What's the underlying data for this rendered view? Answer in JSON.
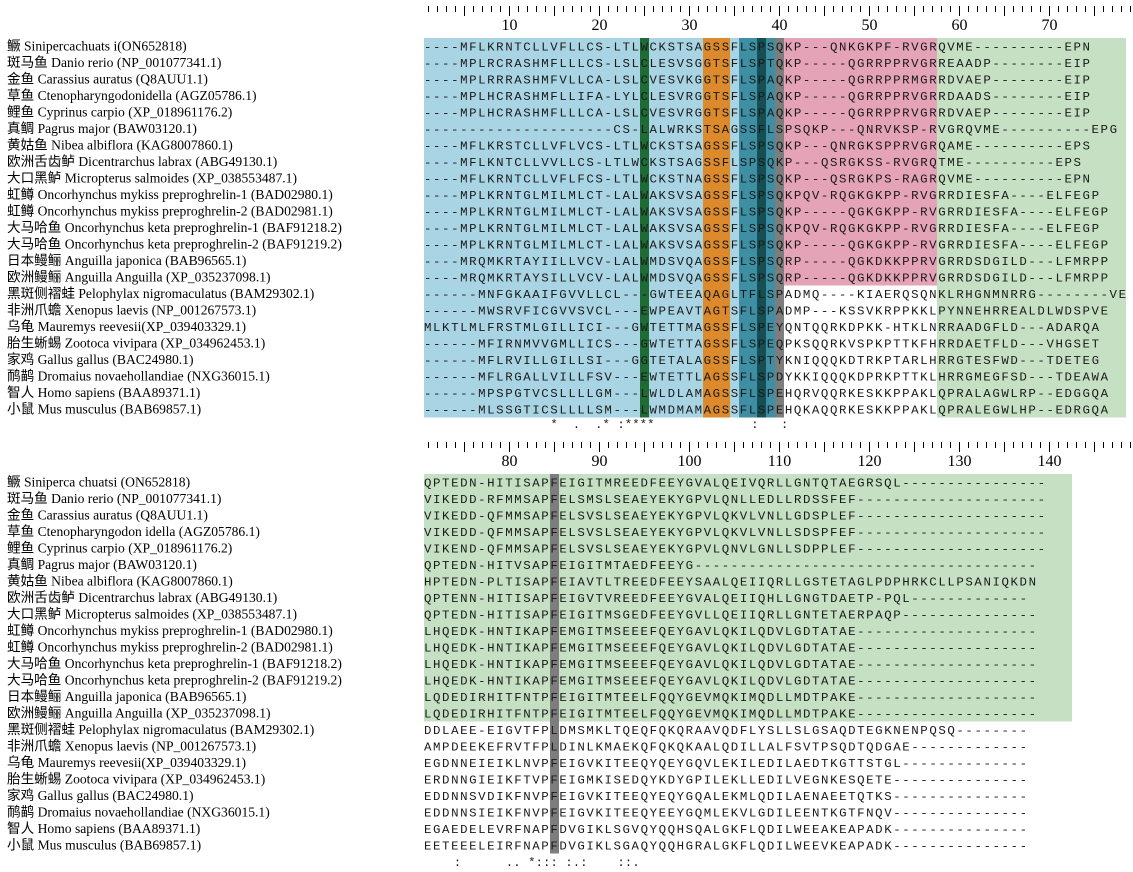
{
  "colors": {
    "blue": "#a9d4e4",
    "pink": "#e5a3b7",
    "green_bg": "#c6e0c4",
    "dark_green": "#1f6b35",
    "orange": "#dc8a2b",
    "teal": "#3e8fa3",
    "dark_teal": "#154f54",
    "gray": "#7d7d7d"
  },
  "blocks": [
    {
      "ruler_numbers": [
        "10",
        "20",
        "30",
        "40",
        "50",
        "60",
        "70"
      ],
      "rows": [
        {
          "name": "鳜 Sinipercachuats i(ON652818)",
          "seq": "----MFLKRNTCLLVFLLCS-LTLWCKSTSAGSSFLSPSQKP---QNKGKPF-RVGRQVME----------EPN"
        },
        {
          "name": "斑马鱼 Danio rerio (NP_001077341.1)",
          "seq": "----MPLRCRASHMFLLLCS-LSLCLESVSGGTSFLSPTQKP-----QGRRPPRVGRREAADP--------EIP"
        },
        {
          "name": "金鱼 Carassius auratus (Q8AUU1.1)",
          "seq": "----MPLRRRASHMFVLLCA-LSLCVESVKGGTSFLSPAQKP-----QGRRPPRMGRRDVAEP--------EIP"
        },
        {
          "name": "草鱼 Ctenopharyngodonidella (AGZ05786.1)",
          "seq": "----MPLHCRASHMFLLIFA-LYLCLESVRGGTSFLSPAQKP-----QGRRPPRVGRRDAADS--------EIP"
        },
        {
          "name": "鲤鱼 Cyprinus carpio (XP_018961176.2)",
          "seq": "----MPLHCRASHMFLLLCA-LSLCVESVRGGTSFLSPAQKP-----QGRRPPRVGRRDVAEP--------EIP"
        },
        {
          "name": "真鲷 Pagrus major (BAW03120.1)",
          "seq": "---------------------CS-LALWRKSTSAGSSFLSPSQKP---QNRVKSP-RVGRQVME----------EPG"
        },
        {
          "name": "黄姑鱼 Nibea albiflora (KAG8007860.1)",
          "seq": "----MFLKRSTCLLVFLVCS-LTLWCKSTSAGSSFLSPSQKP---QNRGKSPPRVGRQAME----------EPS"
        },
        {
          "name": "欧洲舌齿鲈 Dicentrarchus labrax (ABG49130.1)",
          "seq": "----MFLKNTCLLVVLLCS-LTLWCKSTSAGSSFLSPSQKP---QSRGKSS-RVGRQTME----------EPS"
        },
        {
          "name": "大口黑鲈 Micropterus salmoides (XP_038553487.1)",
          "seq": "----MFLKRNTCLLVFLFCS-LTLWCKSTNAGSSFLSPSQKP---QSRGKPS-RAGRQVME----------EPN"
        },
        {
          "name": "虹鳟 Oncorhynchus mykiss preproghrelin-1 (BAD02980.1)",
          "seq": "----MPLKRNTGLMILMLCT-LALWAKSVSAGSSFLSPSQKPQV-RQGKGKPP-RVGRRDIESFA----ELFEGP"
        },
        {
          "name": "虹鳟 Oncorhynchus mykiss preproghrelin-2 (BAD02981.1)",
          "seq": "----MPLKRNTGLMILMLCT-LALWAKSVSAGSSFLSPSQKP-----QGKGKPP-RVGRRDIESFA----ELFEGP"
        },
        {
          "name": "大马哈鱼 Oncorhynchus keta preproghrelin-1 (BAF91218.2)",
          "seq": "----MPLKRNTGLMILMLCT-LALWAKSVSAGSSFLSPSQKPQV-RQGKGKPP-RVGRRDIESFA----ELFEGP"
        },
        {
          "name": "大马哈鱼 Oncorhynchus keta preproghrelin-2 (BAF91219.2)",
          "seq": "----MPLKRNTGLMILMLCT-LALWAKSVSAGSSFLSPSQKP-----QGKGKPP-RVGRRDIESFA----ELFEGP"
        },
        {
          "name": "日本鳗鲡 Anguilla japonica (BAB96565.1)",
          "seq": "----MRQMKRTAYIILLVCV-LALWMDSVQAGSSFLSPSQRP-----QGKDKKPPRVGRRDSDGILD---LFMRPP"
        },
        {
          "name": "欧洲鳗鲡 Anguilla Anguilla (XP_035237098.1)",
          "seq": "----MRQMKRTAYSILLVCV-LALWMDSVQAGSSFLSPSQRP-----QGKDKKPPRVGRRDSDGILD---LFMRPP"
        },
        {
          "name": "黑斑侧褶蛙 Pelophylax nigromaculatus (BAM29302.1)",
          "seq": "------MNFGKAAIFGVVLLCL---GWTEEAQAGLTFLSPADMQ----KIAERQSQNKLRHGNMNRRG--------VE"
        },
        {
          "name": "非洲爪蟾 Xenopus laevis (NP_001267573.1)",
          "seq": "------MWSRVFICGVVSVCL---EWPEAVTAGTSFLSPADMP---KSSVKRPPKKLPYNNEHRREALDLWDSPVE"
        },
        {
          "name": "乌龟 Mauremys reevesii(XP_039403329.1)",
          "seq": "MLKTLMLFRSTMLGILLICI---GWTETTMAGSSFLSPEYQNTQQRKDPKK-HTKLNRRAADGFLD---ADARQA"
        },
        {
          "name": "胎生蜥蜴 Zootoca vivipara (XP_034962453.1)",
          "seq": "------MFIRNMVVGMLLICS---GWTETTAGSSFLSPEQPKSQQRKVSPKPTTKFHRRDAETFLD---VHGSET"
        },
        {
          "name": "家鸡 Gallus gallus (BAC24980.1)",
          "seq": "------MFLRVILLGILLSI---GGTETALAGSSFLSPTYKNIQQQKDTRKPTARLHRRGTESFWD---TDETEG"
        },
        {
          "name": "鸸鹋 Dromaius novaehollandiae (NXG36015.1)",
          "seq": "------MFLRGALLVILLFSV---EWTETTLAGSSFLSPDYKKIQQQKDPRKPTTKLHRRGMEGFSD---TDEAWA"
        },
        {
          "name": "智人 Homo sapiens (BAA89371.1)",
          "seq": "------MPSPGTVCSLLLLGM---LWLDLAMAGSSFLSPEHQRVQQRKESKKPPAKLQPRALAGWLRP--EDGGQA"
        },
        {
          "name": "小鼠 Mus musculus (BAB69857.1)",
          "seq": "------MLSSGTICSLLLLSM---LWMDMAMAGSSFLSPEHQKAQQRKESKKPPAKLQPRALEGWLHP--EDRGQA"
        }
      ],
      "consensus": "                 *  .  .* :****             :   :"
    },
    {
      "ruler_numbers": [
        "80",
        "90",
        "100",
        "110",
        "120",
        "130",
        "140"
      ],
      "rows": [
        {
          "name": "鳜 Siniperca chuatsi (ON652818)",
          "seq": "QPTEDN-HITISAPFEIGITMREEDFEEYGVALQEIVQRLLGNTQTAEGRSQL----------------"
        },
        {
          "name": "斑马鱼 Danio rerio (NP_001077341.1)",
          "seq": "VIKEDD-RFMMSAPFELSMSLSEAEYEKYGPVLQNLLEDLLRDSSFEF---------------------"
        },
        {
          "name": "金鱼 Carassius auratus (Q8AUU1.1)",
          "seq": "VIKEDD-QFMMSAPFELSVSLSEAEYEKYGPVLQKVLVNLLGDSPLEF---------------------"
        },
        {
          "name": "草鱼 Ctenopharyngodon idella (AGZ05786.1)",
          "seq": "VIKEDD-QFMMSAPFELSVSLSEAEYEKYGPVLQKVLVNLLSDSPFEF---------------------"
        },
        {
          "name": "鲤鱼 Cyprinus carpio (XP_018961176.2)",
          "seq": "VIKEND-QFMMSAPFELSVSLSEAEYEKYGPVLQNVLGNLLSDPPLEF---------------------"
        },
        {
          "name": "真鲷 Pagrus major (BAW03120.1)",
          "seq": "QPTEDN-HITVSAPFEIGITMTAEDFEEYG--------------------------------------"
        },
        {
          "name": "黄姑鱼 Nibea albiflora (KAG8007860.1)",
          "seq": "HPTEDN-PLTISAPFEIAVTLTREEDFEEYSAALQEIIQRLLGSTETAGLPDPHRKCLLPSANIQKDN"
        },
        {
          "name": "欧洲舌齿鲈 Dicentrarchus labrax (ABG49130.1)",
          "seq": "QPTENN-HITISAPFEIGVTVREEDFEEYGVALQEIIQHLLGNGTDAETP-PQL-------------"
        },
        {
          "name": "大口黑鲈 Micropterus salmoides (XP_038553487.1)",
          "seq": "QPTEDN-HITISAPFEIGITMSGEDFEEYGVLLQEIIQRLLGNTETAERPAQP---------------"
        },
        {
          "name": "虹鳟 Oncorhynchus mykiss preproghrelin-1 (BAD02980.1)",
          "seq": "LHQEDK-HNTIKAPFEMGITMSEEEFQEYGAVLQKILQDVLGDTATAE--------------------"
        },
        {
          "name": "虹鳟 Oncorhynchus mykiss preproghrelin-2 (BAD02981.1)",
          "seq": "LHQEDK-HNTIKAPFEMGITMSEEEFQEYGAVLQKILQDVLGDTATAE--------------------"
        },
        {
          "name": "大马哈鱼 Oncorhynchus keta preproghrelin-1 (BAF91218.2)",
          "seq": "LHQEDK-HNTIKAPFEMGITMSEEEFQEYGAVLQKILQDVLGDTATAE--------------------"
        },
        {
          "name": "大马哈鱼 Oncorhynchus keta preproghrelin-2 (BAF91219.2)",
          "seq": "LHQEDK-HNTIKAPFEMGITMSEEEFQEYGAVLQKILQDVLGDTATAE--------------------"
        },
        {
          "name": "日本鳗鲡 Anguilla japonica (BAB96565.1)",
          "seq": "LQDEDIRHITFNTPFEIGITMTEELFQQYGEVMQKIMQDLLMDTPAKE--------------------"
        },
        {
          "name": "欧洲鳗鲡 Anguilla Anguilla (XP_035237098.1)",
          "seq": "LQDEDIRHITFNTPFEIGITMTEELFQQYGEVMQKIMQDLLMDTPAKE--------------------"
        },
        {
          "name": "黑斑侧褶蛙 Pelophylax nigromaculatus (BAM29302.1)",
          "seq": "DDLAEE-EIGVTFPLDMSMKLTQEQFQKQRAAVQDFLYSLLSLGSAQDTEGKNENPQSQ--------"
        },
        {
          "name": "非洲爪蟾 Xenopus laevis (NP_001267573.1)",
          "seq": "AMPDEEKEFRVTFPLDINLKMAEKQFQKQKAALQDILLALFSVTPSQDTQDGAE-------------"
        },
        {
          "name": "乌龟 Mauremys reevesii(XP_039403329.1)",
          "seq": "EGDNNEIEIKLNVPFEIGVKITEEQYQEYGQVLEKILEDILAEDTKGTTSTGL--------------"
        },
        {
          "name": "胎生蜥蜴 Zootoca vivipara (XP_034962453.1)",
          "seq": "ERDNNGIEIKFTVPFEIGMKISEDQYKDYGPILEKLLEDILVEGNKESQETE---------------"
        },
        {
          "name": "家鸡 Gallus gallus (BAC24980.1)",
          "seq": "EDDNNSVDIKFNVPFEIGVKITEEQYEQYGQALEKMLQDILAENAEETQTKS---------------"
        },
        {
          "name": "鸸鹋 Dromaius novaehollandiae (NXG36015.1)",
          "seq": "EDDNNSIEIKFNVPFEIGVKITEEQYEEYGQMLEKVLGDILEENTKGTFNQV---------------"
        },
        {
          "name": "智人 Homo sapiens (BAA89371.1)",
          "seq": "EGAEDELEVRFNAPFDVGIKLSGVQYQQHSQALGKFLQDILWEEAKEAPADK---------------"
        },
        {
          "name": "小鼠 Mus musculus (BAB69857.1)",
          "seq": "EETEEELEIRFNAPFDVGIKLSGAQYQQHGRALGKFLQDILWEEVKEAPADK---------------"
        }
      ],
      "consensus": "    :      .. *::: :.:    ::."
    }
  ]
}
